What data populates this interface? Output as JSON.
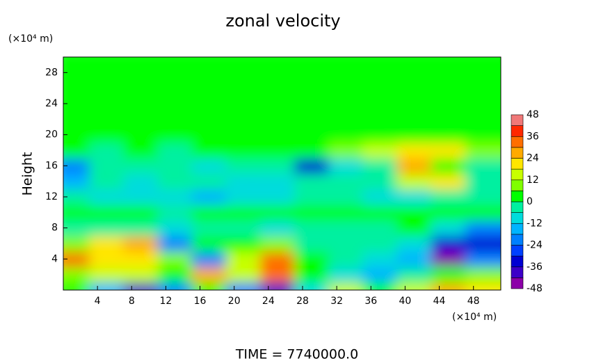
{
  "chart_data": {
    "type": "contour",
    "title": "zonal velocity",
    "y_unit": "(×10⁴ m)",
    "x_unit": "(×10⁴ m)",
    "ylabel": "Height",
    "footer": "TIME = 7740000.0",
    "xlim": [
      0,
      51.2
    ],
    "ylim": [
      0,
      30
    ],
    "xticks": [
      4,
      8,
      12,
      16,
      20,
      24,
      28,
      32,
      36,
      40,
      44,
      48
    ],
    "yticks": [
      4,
      8,
      12,
      16,
      20,
      24,
      28
    ],
    "x": [
      2,
      6,
      10,
      14,
      18,
      22,
      26,
      30,
      34,
      38,
      42,
      46,
      50
    ],
    "y": [
      1,
      3,
      5,
      7,
      9,
      11,
      13,
      15,
      17,
      19,
      21,
      23,
      25,
      27,
      29
    ],
    "z": [
      [
        0,
        -16,
        -42,
        -20,
        0,
        -20,
        -42,
        -10,
        14,
        4,
        12,
        28,
        20
      ],
      [
        10,
        16,
        12,
        2,
        28,
        14,
        32,
        4,
        -8,
        -16,
        -2,
        4,
        6
      ],
      [
        30,
        22,
        20,
        8,
        -22,
        16,
        30,
        0,
        -4,
        -10,
        -16,
        -44,
        -24
      ],
      [
        8,
        20,
        24,
        -20,
        0,
        4,
        6,
        -2,
        -4,
        -6,
        -8,
        -36,
        -32
      ],
      [
        -4,
        -6,
        -4,
        -8,
        -6,
        -4,
        -8,
        -6,
        -4,
        -2,
        0,
        -8,
        -20
      ],
      [
        0,
        2,
        0,
        -2,
        0,
        2,
        0,
        4,
        2,
        0,
        2,
        4,
        2
      ],
      [
        -6,
        -8,
        -10,
        -12,
        -14,
        -10,
        -8,
        -6,
        -4,
        -8,
        -10,
        -6,
        -4
      ],
      [
        -14,
        -6,
        -8,
        -6,
        -4,
        -10,
        -8,
        -6,
        -4,
        -2,
        16,
        20,
        -4
      ],
      [
        -20,
        -4,
        -6,
        -4,
        -8,
        -6,
        -4,
        -36,
        -8,
        -4,
        24,
        2,
        -2
      ],
      [
        0,
        -4,
        0,
        -2,
        0,
        2,
        0,
        4,
        10,
        12,
        20,
        18,
        6
      ],
      [
        4,
        4,
        4,
        4,
        4,
        4,
        4,
        4,
        4,
        4,
        4,
        4,
        4
      ],
      [
        3,
        3,
        3,
        3,
        3,
        3,
        3,
        3,
        3,
        3,
        3,
        3,
        3
      ],
      [
        2,
        2,
        2,
        2,
        2,
        2,
        2,
        2,
        2,
        2,
        2,
        2,
        2
      ],
      [
        2,
        2,
        2,
        2,
        2,
        2,
        2,
        2,
        2,
        2,
        2,
        2,
        2
      ],
      [
        2,
        2,
        2,
        2,
        2,
        2,
        2,
        2,
        2,
        2,
        2,
        2,
        2
      ]
    ],
    "colorbar": {
      "levels": [
        -48,
        -42,
        -36,
        -30,
        -24,
        -18,
        -12,
        -6,
        0,
        6,
        12,
        18,
        24,
        30,
        36,
        42,
        48
      ],
      "colors": [
        "#8c00a8",
        "#3c00c8",
        "#0000d2",
        "#0040ff",
        "#0080ff",
        "#00b4ff",
        "#00dcdc",
        "#00f0a0",
        "#00ff00",
        "#80ff00",
        "#c8ff00",
        "#ffe600",
        "#ffaa00",
        "#ff6e00",
        "#ff2800",
        "#f07878"
      ],
      "ticks": [
        -48,
        -36,
        -24,
        -12,
        0,
        12,
        24,
        36,
        48
      ]
    }
  }
}
